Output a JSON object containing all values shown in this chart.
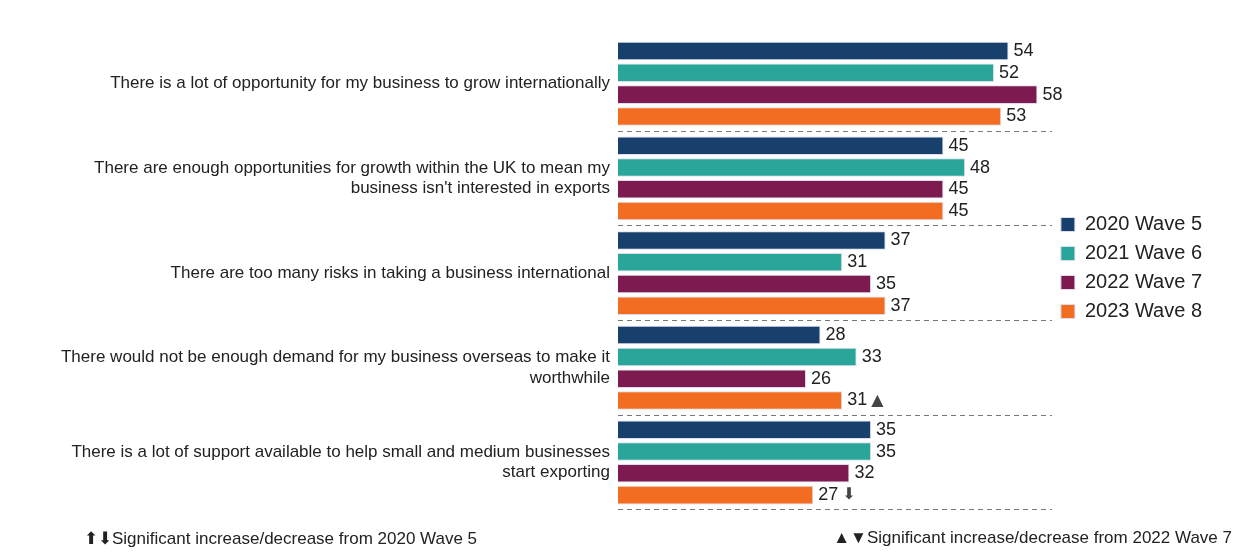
{
  "chart_data": {
    "type": "bar",
    "orientation": "horizontal",
    "categories": [
      "There is a lot of opportunity for my business to grow internationally",
      "There are enough opportunities for growth within the UK to mean my business isn't interested in exports",
      "There are too many risks in taking a business international",
      "There would not be enough demand for my business overseas to make it worthwhile",
      "There is a lot of support available to help small and medium businesses start exporting"
    ],
    "series": [
      {
        "name": "2020 Wave 5",
        "color": "#17406d",
        "values": [
          54,
          45,
          37,
          28,
          35
        ]
      },
      {
        "name": "2021 Wave 6",
        "color": "#2aa59a",
        "values": [
          52,
          48,
          31,
          33,
          35
        ]
      },
      {
        "name": "2022 Wave 7",
        "color": "#7d1a4f",
        "values": [
          58,
          45,
          35,
          26,
          32
        ]
      },
      {
        "name": "2023 Wave 8",
        "color": "#f26c22",
        "values": [
          53,
          45,
          37,
          31,
          27
        ]
      }
    ],
    "xlim": [
      0,
      60
    ],
    "tick_labels": "y",
    "data_labels": true,
    "grid": "y",
    "legend": "right",
    "annotations": [
      {
        "text": "▲",
        "x": 31,
        "y": "There would not be enough demand for my business overseas to make it worthwhile"
      },
      {
        "text": "⬇",
        "x": 27,
        "y": "There is a lot of support available to help small and medium businesses start exporting"
      },
      "⬆⬇Significant increase/decrease from 2020 Wave 5",
      "▲▼Significant increase/decrease from 2022 Wave 7"
    ]
  }
}
